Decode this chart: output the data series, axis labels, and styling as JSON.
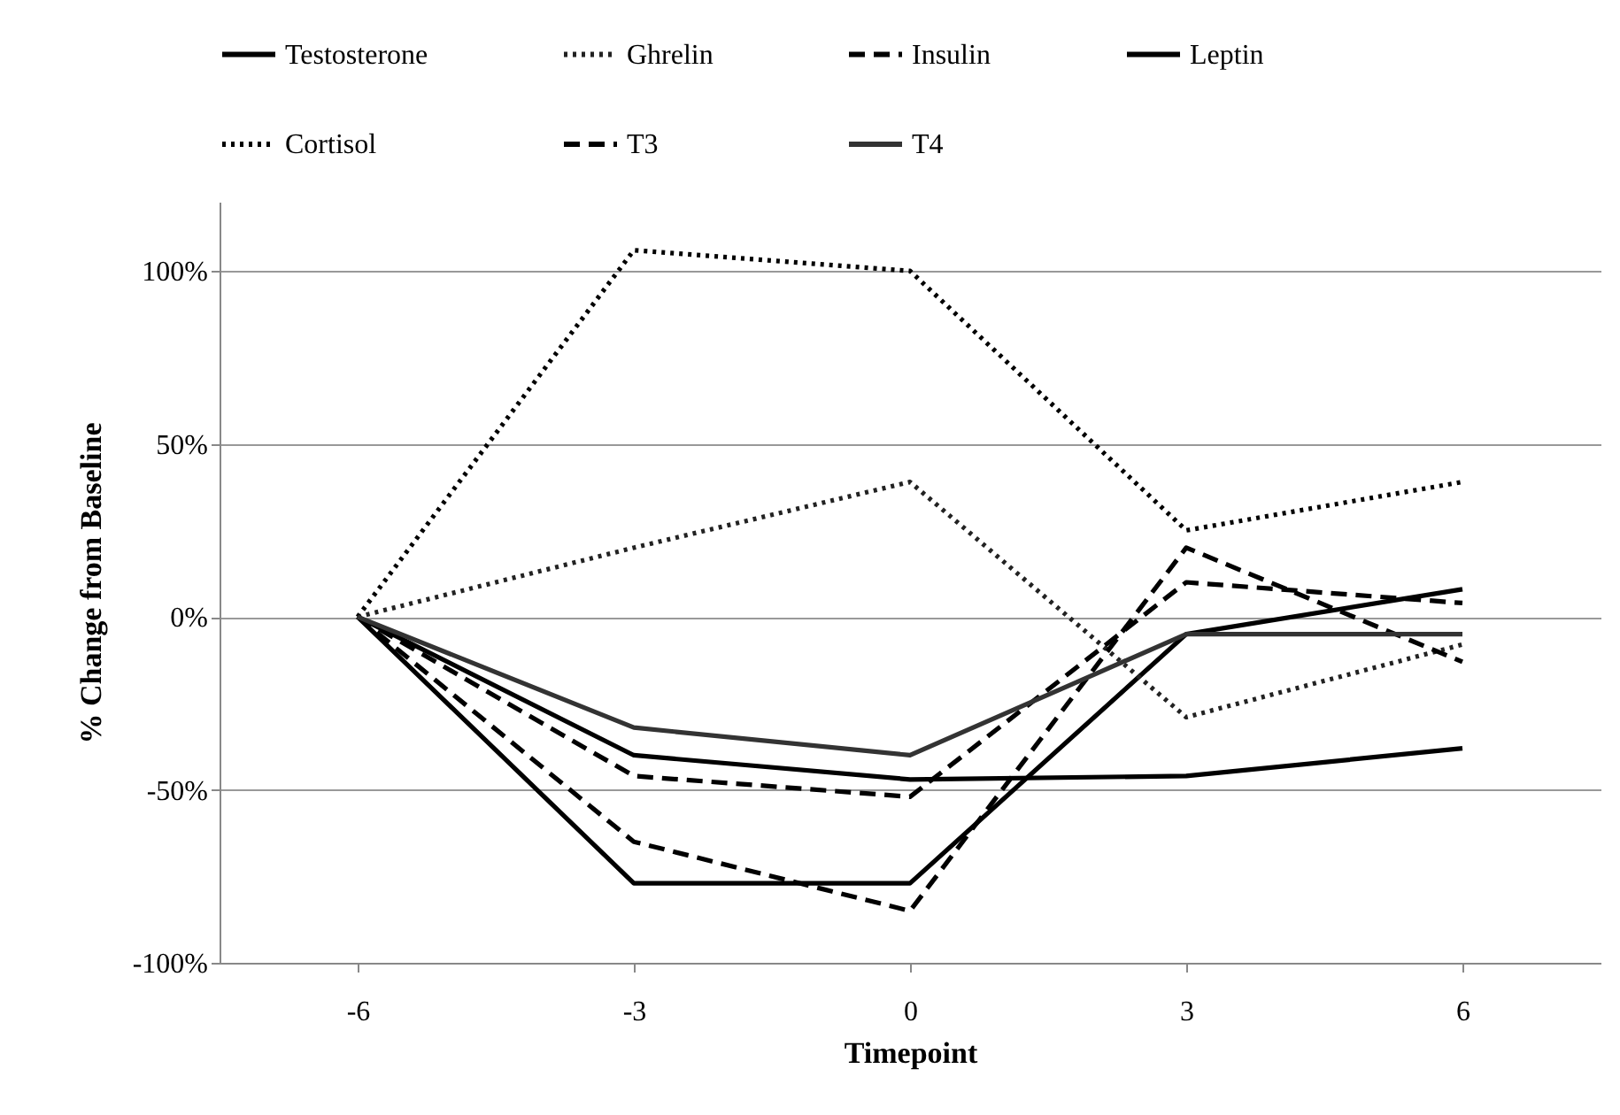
{
  "chart_data": {
    "type": "line",
    "xlabel": "Timepoint",
    "ylabel": "% Change from Baseline",
    "categories": [
      "-6",
      "-3",
      "0",
      "3",
      "6"
    ],
    "ylim": [
      -100,
      120
    ],
    "yticks": [
      {
        "value": -100,
        "label": "-100%"
      },
      {
        "value": -50,
        "label": "-50%"
      },
      {
        "value": 0,
        "label": "0%"
      },
      {
        "value": 50,
        "label": "50%"
      },
      {
        "value": 100,
        "label": "100%"
      }
    ],
    "grid": "y",
    "legend": "top",
    "marker": "none",
    "series": [
      {
        "name": "Testosterone",
        "color": "#000000",
        "line_style": "solid",
        "values": [
          0,
          -77,
          -77,
          -5,
          8
        ]
      },
      {
        "name": "Ghrelin",
        "color": "#222222",
        "line_style": "dotted",
        "values": [
          0,
          20,
          39,
          -29,
          -8
        ]
      },
      {
        "name": "Insulin",
        "color": "#000000",
        "line_style": "dashed",
        "values": [
          0,
          -65,
          -85,
          20,
          -13
        ]
      },
      {
        "name": "Leptin",
        "color": "#000000",
        "line_style": "solid",
        "values": [
          0,
          -40,
          -47,
          -46,
          -38
        ]
      },
      {
        "name": "Cortisol",
        "color": "#000000",
        "line_style": "dotted",
        "values": [
          0,
          106,
          100,
          25,
          39
        ]
      },
      {
        "name": "T3",
        "color": "#000000",
        "line_style": "dashed",
        "values": [
          0,
          -46,
          -52,
          10,
          4
        ]
      },
      {
        "name": "T4",
        "color": "#333333",
        "line_style": "solid",
        "values": [
          0,
          -32,
          -40,
          -5,
          -5
        ]
      }
    ]
  }
}
